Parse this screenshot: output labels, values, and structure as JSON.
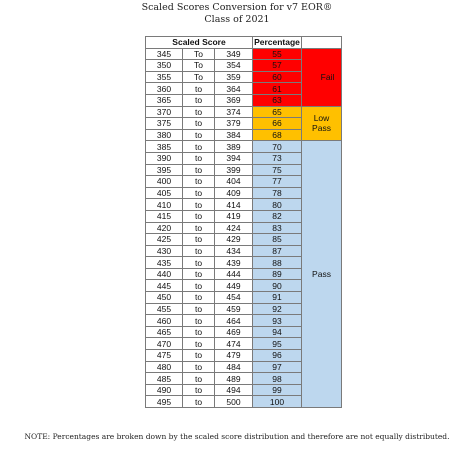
{
  "title_line1": "Scaled Scores Conversion for v7 EOR®",
  "title_line2": "Class of 2021",
  "headers": {
    "scaled": "Scaled Score",
    "percentage": "Percentage"
  },
  "bands": {
    "fail": "Fail",
    "low_pass_line1": "Low",
    "low_pass_line2": "Pass",
    "pass": "Pass"
  },
  "colors": {
    "fail": "#ff0000",
    "low_pass": "#ffc000",
    "pass": "#bdd7ee"
  },
  "rows": [
    {
      "low": "345",
      "to": "To",
      "high": "349",
      "pct": "55",
      "band": "fail"
    },
    {
      "low": "350",
      "to": "To",
      "high": "354",
      "pct": "57",
      "band": "fail"
    },
    {
      "low": "355",
      "to": "To",
      "high": "359",
      "pct": "60",
      "band": "fail"
    },
    {
      "low": "360",
      "to": "to",
      "high": "364",
      "pct": "61",
      "band": "fail"
    },
    {
      "low": "365",
      "to": "to",
      "high": "369",
      "pct": "63",
      "band": "fail"
    },
    {
      "low": "370",
      "to": "to",
      "high": "374",
      "pct": "65",
      "band": "low"
    },
    {
      "low": "375",
      "to": "to",
      "high": "379",
      "pct": "66",
      "band": "low"
    },
    {
      "low": "380",
      "to": "to",
      "high": "384",
      "pct": "68",
      "band": "low"
    },
    {
      "low": "385",
      "to": "to",
      "high": "389",
      "pct": "70",
      "band": "pass"
    },
    {
      "low": "390",
      "to": "to",
      "high": "394",
      "pct": "73",
      "band": "pass"
    },
    {
      "low": "395",
      "to": "to",
      "high": "399",
      "pct": "75",
      "band": "pass"
    },
    {
      "low": "400",
      "to": "to",
      "high": "404",
      "pct": "77",
      "band": "pass"
    },
    {
      "low": "405",
      "to": "to",
      "high": "409",
      "pct": "78",
      "band": "pass"
    },
    {
      "low": "410",
      "to": "to",
      "high": "414",
      "pct": "80",
      "band": "pass"
    },
    {
      "low": "415",
      "to": "to",
      "high": "419",
      "pct": "82",
      "band": "pass"
    },
    {
      "low": "420",
      "to": "to",
      "high": "424",
      "pct": "83",
      "band": "pass"
    },
    {
      "low": "425",
      "to": "to",
      "high": "429",
      "pct": "85",
      "band": "pass"
    },
    {
      "low": "430",
      "to": "to",
      "high": "434",
      "pct": "87",
      "band": "pass"
    },
    {
      "low": "435",
      "to": "to",
      "high": "439",
      "pct": "88",
      "band": "pass"
    },
    {
      "low": "440",
      "to": "to",
      "high": "444",
      "pct": "89",
      "band": "pass"
    },
    {
      "low": "445",
      "to": "to",
      "high": "449",
      "pct": "90",
      "band": "pass"
    },
    {
      "low": "450",
      "to": "to",
      "high": "454",
      "pct": "91",
      "band": "pass"
    },
    {
      "low": "455",
      "to": "to",
      "high": "459",
      "pct": "92",
      "band": "pass"
    },
    {
      "low": "460",
      "to": "to",
      "high": "464",
      "pct": "93",
      "band": "pass"
    },
    {
      "low": "465",
      "to": "to",
      "high": "469",
      "pct": "94",
      "band": "pass"
    },
    {
      "low": "470",
      "to": "to",
      "high": "474",
      "pct": "95",
      "band": "pass"
    },
    {
      "low": "475",
      "to": "to",
      "high": "479",
      "pct": "96",
      "band": "pass"
    },
    {
      "low": "480",
      "to": "to",
      "high": "484",
      "pct": "97",
      "band": "pass"
    },
    {
      "low": "485",
      "to": "to",
      "high": "489",
      "pct": "98",
      "band": "pass"
    },
    {
      "low": "490",
      "to": "to",
      "high": "494",
      "pct": "99",
      "band": "pass"
    },
    {
      "low": "495",
      "to": "to",
      "high": "500",
      "pct": "100",
      "band": "pass"
    }
  ],
  "note": "NOTE: Percentages are broken down by the scaled score distribution and therefore are not equally distributed."
}
